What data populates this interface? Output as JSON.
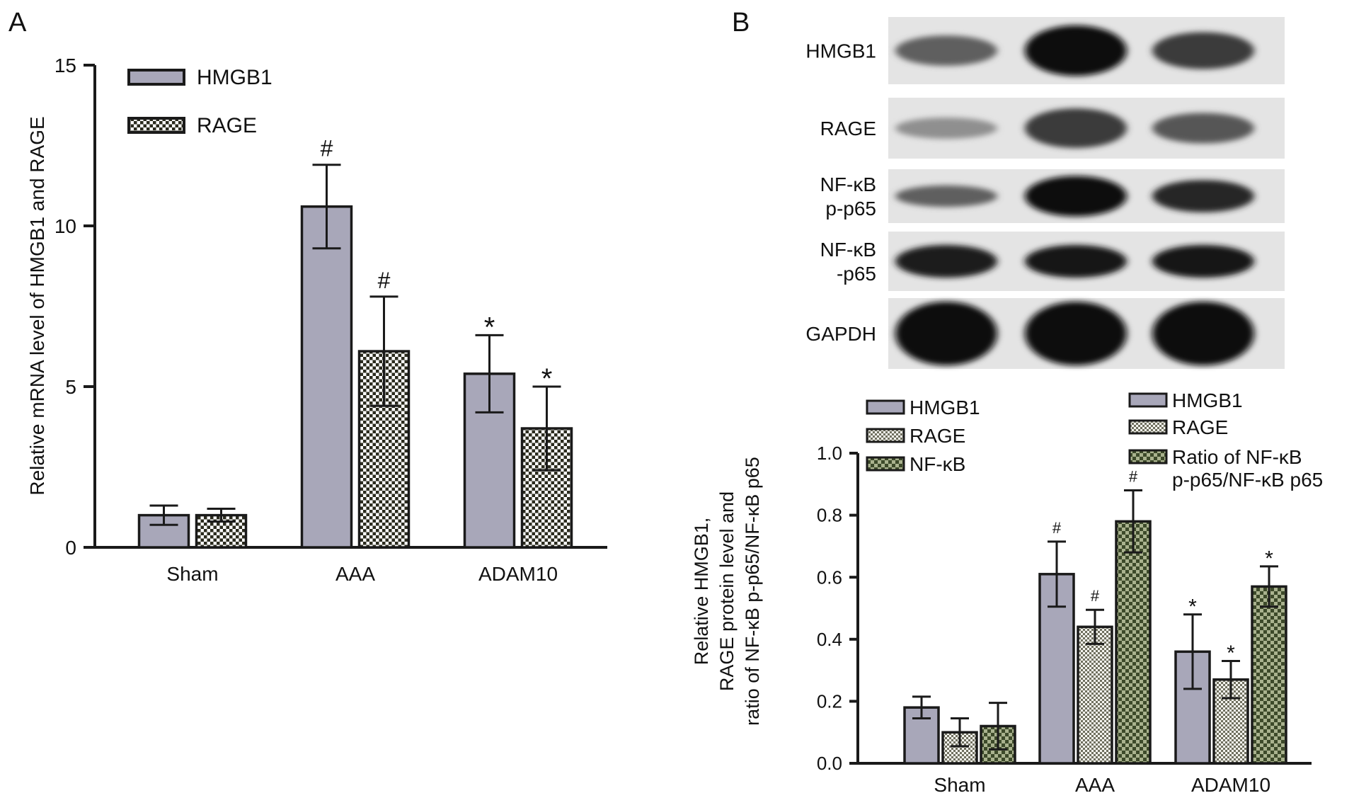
{
  "panels": {
    "a": {
      "label": "A"
    },
    "b": {
      "label": "B"
    }
  },
  "colors": {
    "hmgb1_fill": "#a8a7b9",
    "rage_fill": "#ffffff",
    "rage_pattern": "#2b2b1e",
    "nfkb_fill": "#3d4a2a",
    "nfkb_pattern": "#c8cdb3",
    "axis": "#1a1a1a",
    "error_bar": "#1a1a1a"
  },
  "blot": {
    "lanes": 3,
    "rows": [
      {
        "label_lines": [
          "HMGB1"
        ],
        "intensity": [
          0.55,
          1.0,
          0.75
        ],
        "thickness": [
          0.45,
          0.75,
          0.55
        ]
      },
      {
        "label_lines": [
          "RAGE"
        ],
        "intensity": [
          0.3,
          0.75,
          0.6
        ],
        "thickness": [
          0.35,
          0.65,
          0.5
        ]
      },
      {
        "label_lines": [
          "NF-κB",
          "p-p65"
        ],
        "intensity": [
          0.55,
          1.0,
          0.85
        ],
        "thickness": [
          0.4,
          0.75,
          0.6
        ]
      },
      {
        "label_lines": [
          "NF-κB",
          "-p65"
        ],
        "intensity": [
          0.9,
          0.95,
          0.95
        ],
        "thickness": [
          0.55,
          0.55,
          0.55
        ]
      },
      {
        "label_lines": [
          "GAPDH"
        ],
        "intensity": [
          1.0,
          1.0,
          1.0
        ],
        "thickness": [
          0.9,
          0.9,
          0.9
        ]
      }
    ]
  },
  "chart_data": [
    {
      "type": "bar",
      "panel": "A",
      "ylabel": "Relative mRNA level of HMGB1 and RAGE",
      "xlabel": "",
      "categories": [
        "Sham",
        "AAA",
        "ADAM10"
      ],
      "ylim": [
        0,
        15
      ],
      "yticks": [
        0,
        5,
        10,
        15
      ],
      "ytick_labels": [
        "0",
        "5",
        "10",
        "15"
      ],
      "legend_position": "top-left",
      "series": [
        {
          "name": "HMGB1",
          "values": [
            1.0,
            10.6,
            5.4
          ],
          "errors": [
            0.3,
            1.3,
            1.2
          ],
          "markers": [
            "",
            "#",
            "*"
          ],
          "style": "solid"
        },
        {
          "name": "RAGE",
          "values": [
            1.0,
            6.1,
            3.7
          ],
          "errors": [
            0.2,
            1.7,
            1.3
          ],
          "markers": [
            "",
            "#",
            "*"
          ],
          "style": "checker"
        }
      ]
    },
    {
      "type": "bar",
      "panel": "B",
      "ylabel_lines": [
        "Relative HMGB1,",
        "RAGE protein level and",
        "ratio of NF-κB p-p65/NF-κB p65"
      ],
      "xlabel": "",
      "categories": [
        "Sham",
        "AAA",
        "ADAM10"
      ],
      "ylim": [
        0,
        1.0
      ],
      "yticks": [
        0,
        0.2,
        0.4,
        0.6,
        0.8,
        1.0
      ],
      "ytick_labels": [
        "0.0",
        "0.2",
        "0.4",
        "0.6",
        "0.8",
        "1.0"
      ],
      "legend_left": [
        "HMGB1",
        "RAGE",
        "NF-κB"
      ],
      "legend_right_lines": [
        [
          "HMGB1"
        ],
        [
          "RAGE"
        ],
        [
          "Ratio of NF-κB",
          "p-p65/NF-κB p65"
        ]
      ],
      "series": [
        {
          "name": "HMGB1",
          "values": [
            0.18,
            0.61,
            0.36
          ],
          "errors": [
            0.035,
            0.105,
            0.12
          ],
          "markers": [
            "",
            "#",
            "*"
          ],
          "style": "solid"
        },
        {
          "name": "RAGE",
          "values": [
            0.1,
            0.44,
            0.27
          ],
          "errors": [
            0.045,
            0.055,
            0.06
          ],
          "markers": [
            "",
            "#",
            "*"
          ],
          "style": "fine"
        },
        {
          "name": "NF-κB",
          "values": [
            0.12,
            0.78,
            0.57
          ],
          "errors": [
            0.075,
            0.1,
            0.065
          ],
          "markers": [
            "",
            "#",
            "*"
          ],
          "style": "dark"
        }
      ]
    }
  ]
}
